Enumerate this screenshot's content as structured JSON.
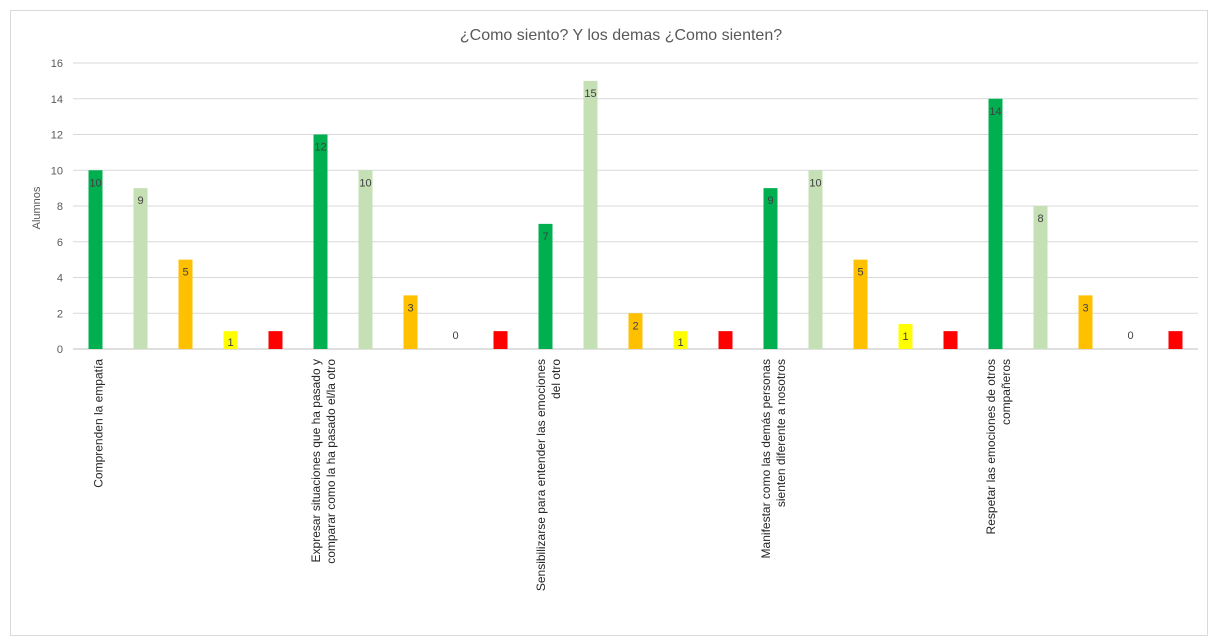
{
  "chart_data": {
    "type": "bar",
    "title": "¿Como siento? Y los demas ¿Como sienten?",
    "ylabel": "Alumnos",
    "xlabel": "",
    "ylim": [
      0,
      16
    ],
    "y_ticks": [
      0,
      2,
      4,
      6,
      8,
      10,
      12,
      14,
      16
    ],
    "grid": true,
    "legend": "none",
    "categories": [
      "Comprenden la empatía",
      "Expresar situaciones que ha pasado y comparar como la ha pasado el/la otro",
      "Sensibilizarse para entender las emociones del otro",
      "Manifestar como las demás personas sienten diferente a nosotros",
      "Respetar las emociones de otros compañeros"
    ],
    "category_label_lines": [
      [
        "Comprenden la empatía"
      ],
      [
        "Expresar situaciones que ha pasado y",
        "comparar como la ha pasado el/la otro"
      ],
      [
        "Sensibilizarse para entender las emociones",
        "del otro"
      ],
      [
        "Manifestar como las demás personas",
        "sienten diferente a nosotros"
      ],
      [
        "Respetar las emociones de otros",
        "compañeros"
      ]
    ],
    "series": [
      {
        "color": "#00b050",
        "values": [
          10,
          12,
          7,
          9,
          14
        ]
      },
      {
        "color": "#c5e0b4",
        "values": [
          9,
          10,
          15,
          10,
          8
        ]
      },
      {
        "color": "#ffc000",
        "values": [
          5,
          3,
          2,
          5,
          3
        ]
      },
      {
        "color": "#ffff00",
        "values": [
          1,
          0,
          1,
          1.4,
          0
        ]
      },
      {
        "color": "#ff0000",
        "values": [
          1,
          1,
          1,
          1,
          1
        ]
      }
    ],
    "data_labels": [
      [
        "10",
        "9",
        "5",
        "1",
        ""
      ],
      [
        "12",
        "10",
        "3",
        "0",
        ""
      ],
      [
        "7",
        "15",
        "2",
        "1",
        ""
      ],
      [
        "9",
        "10",
        "5",
        "1",
        ""
      ],
      [
        "14",
        "8",
        "3",
        "0",
        ""
      ]
    ]
  }
}
